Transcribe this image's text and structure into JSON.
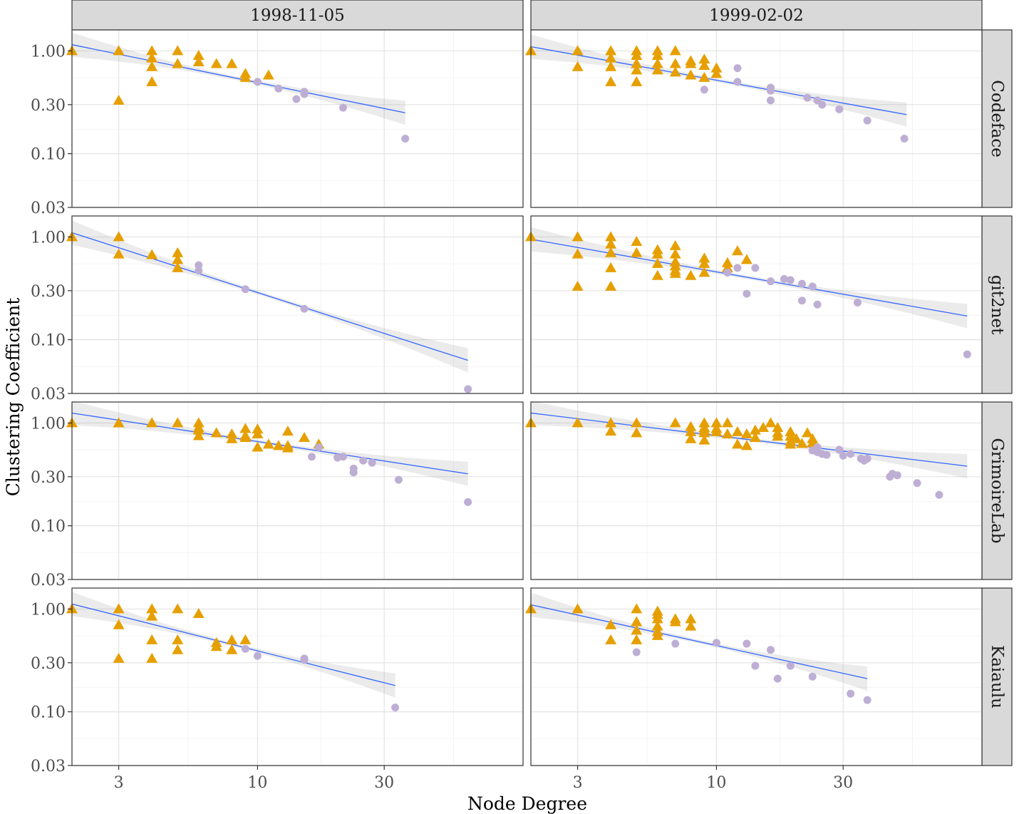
{
  "chart_data": {
    "type": "scatter",
    "xlabel": "Node Degree",
    "ylabel": "Clustering Coefficient",
    "x_scale": "log10",
    "y_scale": "log10",
    "xlim": [
      2.0,
      100
    ],
    "ylim": [
      0.03,
      1.6
    ],
    "x_ticks": [
      3,
      10,
      30
    ],
    "x_tick_labels": [
      "3",
      "10",
      "30"
    ],
    "y_ticks": [
      0.03,
      0.1,
      0.3,
      1.0
    ],
    "y_tick_labels": [
      "0.03",
      "0.10",
      "0.30",
      "1.00"
    ],
    "columns": [
      "1998-11-05",
      "1999-02-02"
    ],
    "rows": [
      "Codeface",
      "git2net",
      "GrimoireLab",
      "Kaiaulu"
    ],
    "marker_groups": [
      {
        "name": "triangle",
        "shape": "triangle",
        "color": "#E69F00"
      },
      {
        "name": "circle",
        "shape": "circle",
        "color": "#BEAED4"
      }
    ],
    "fit_line_color": "#3366FF",
    "panels": [
      {
        "row": "Codeface",
        "col": "1998-11-05",
        "fit": {
          "x0": 2,
          "y0": 1.15,
          "x1": 36,
          "y1": 0.25
        },
        "triangles": [
          [
            2,
            1
          ],
          [
            3,
            1
          ],
          [
            3,
            0.33
          ],
          [
            4,
            1
          ],
          [
            4,
            0.85
          ],
          [
            4,
            0.7
          ],
          [
            4,
            0.5
          ],
          [
            5,
            1
          ],
          [
            5,
            0.75
          ],
          [
            6,
            0.9
          ],
          [
            6,
            0.78
          ],
          [
            7,
            0.75
          ],
          [
            8,
            0.75
          ],
          [
            9,
            0.6
          ],
          [
            9,
            0.55
          ],
          [
            11,
            0.58
          ]
        ],
        "circles": [
          [
            10,
            0.5
          ],
          [
            12,
            0.43
          ],
          [
            14,
            0.34
          ],
          [
            15,
            0.38
          ],
          [
            15,
            0.4
          ],
          [
            21,
            0.28
          ],
          [
            36,
            0.14
          ]
        ]
      },
      {
        "row": "Codeface",
        "col": "1999-02-02",
        "fit": {
          "x0": 2,
          "y0": 1.1,
          "x1": 52,
          "y1": 0.24
        },
        "triangles": [
          [
            2,
            1
          ],
          [
            3,
            1
          ],
          [
            3,
            0.7
          ],
          [
            4,
            1
          ],
          [
            4,
            0.85
          ],
          [
            4,
            0.7
          ],
          [
            4,
            0.5
          ],
          [
            5,
            1
          ],
          [
            5,
            0.9
          ],
          [
            5,
            0.75
          ],
          [
            5,
            0.65
          ],
          [
            5,
            0.5
          ],
          [
            6,
            1
          ],
          [
            6,
            0.9
          ],
          [
            6,
            0.75
          ],
          [
            6,
            0.65
          ],
          [
            7,
            1
          ],
          [
            7,
            0.75
          ],
          [
            7,
            0.62
          ],
          [
            8,
            0.8
          ],
          [
            8,
            0.75
          ],
          [
            8,
            0.58
          ],
          [
            9,
            0.83
          ],
          [
            9,
            0.72
          ],
          [
            9,
            0.55
          ],
          [
            10,
            0.68
          ],
          [
            10,
            0.6
          ]
        ],
        "circles": [
          [
            9,
            0.42
          ],
          [
            12,
            0.68
          ],
          [
            12,
            0.5
          ],
          [
            16,
            0.44
          ],
          [
            16,
            0.41
          ],
          [
            16,
            0.33
          ],
          [
            22,
            0.35
          ],
          [
            24,
            0.33
          ],
          [
            25,
            0.3
          ],
          [
            29,
            0.27
          ],
          [
            37,
            0.21
          ],
          [
            51,
            0.14
          ]
        ]
      },
      {
        "row": "git2net",
        "col": "1998-11-05",
        "fit": {
          "x0": 2,
          "y0": 1.1,
          "x1": 62,
          "y1": 0.063
        },
        "triangles": [
          [
            2,
            1
          ],
          [
            3,
            1
          ],
          [
            3,
            0.68
          ],
          [
            4,
            0.67
          ],
          [
            5,
            0.7
          ],
          [
            5,
            0.6
          ],
          [
            5,
            0.5
          ]
        ],
        "circles": [
          [
            6,
            0.53
          ],
          [
            6,
            0.47
          ],
          [
            9,
            0.31
          ],
          [
            15,
            0.2
          ],
          [
            62,
            0.033
          ]
        ]
      },
      {
        "row": "git2net",
        "col": "1999-02-02",
        "fit": {
          "x0": 2,
          "y0": 0.95,
          "x1": 88,
          "y1": 0.17
        },
        "triangles": [
          [
            2,
            1
          ],
          [
            3,
            1
          ],
          [
            3,
            0.68
          ],
          [
            3,
            0.33
          ],
          [
            4,
            1
          ],
          [
            4,
            0.85
          ],
          [
            4,
            0.7
          ],
          [
            4,
            0.5
          ],
          [
            4,
            0.33
          ],
          [
            5,
            0.9
          ],
          [
            5,
            0.7
          ],
          [
            6,
            0.75
          ],
          [
            6,
            0.68
          ],
          [
            6,
            0.55
          ],
          [
            6,
            0.42
          ],
          [
            7,
            0.82
          ],
          [
            7,
            0.68
          ],
          [
            7,
            0.57
          ],
          [
            7,
            0.52
          ],
          [
            7,
            0.47
          ],
          [
            7,
            0.44
          ],
          [
            8,
            0.42
          ],
          [
            9,
            0.62
          ],
          [
            9,
            0.55
          ],
          [
            9,
            0.45
          ],
          [
            11,
            0.56
          ],
          [
            11,
            0.5
          ],
          [
            12,
            0.73
          ],
          [
            13,
            0.6
          ]
        ],
        "circles": [
          [
            11,
            0.45
          ],
          [
            12,
            0.5
          ],
          [
            13,
            0.28
          ],
          [
            14,
            0.5
          ],
          [
            16,
            0.37
          ],
          [
            18,
            0.39
          ],
          [
            19,
            0.38
          ],
          [
            21,
            0.35
          ],
          [
            21,
            0.24
          ],
          [
            23,
            0.33
          ],
          [
            24,
            0.22
          ],
          [
            34,
            0.23
          ],
          [
            88,
            0.072
          ]
        ]
      },
      {
        "row": "GrimoireLab",
        "col": "1998-11-05",
        "fit": {
          "x0": 2,
          "y0": 1.25,
          "x1": 62,
          "y1": 0.32
        },
        "triangles": [
          [
            2,
            1
          ],
          [
            3,
            1
          ],
          [
            4,
            1
          ],
          [
            5,
            1
          ],
          [
            6,
            1
          ],
          [
            6,
            0.9
          ],
          [
            6,
            0.85
          ],
          [
            6,
            0.75
          ],
          [
            7,
            0.8
          ],
          [
            8,
            0.78
          ],
          [
            8,
            0.7
          ],
          [
            9,
            0.88
          ],
          [
            9,
            0.75
          ],
          [
            9,
            0.72
          ],
          [
            10,
            0.87
          ],
          [
            10,
            0.78
          ],
          [
            10,
            0.58
          ],
          [
            11,
            0.62
          ],
          [
            12,
            0.6
          ],
          [
            13,
            0.83
          ],
          [
            13,
            0.6
          ],
          [
            13,
            0.57
          ],
          [
            15,
            0.72
          ],
          [
            17,
            0.62
          ]
        ],
        "circles": [
          [
            16,
            0.47
          ],
          [
            17,
            0.58
          ],
          [
            20,
            0.46
          ],
          [
            21,
            0.47
          ],
          [
            23,
            0.36
          ],
          [
            23,
            0.33
          ],
          [
            25,
            0.43
          ],
          [
            27,
            0.41
          ],
          [
            34,
            0.28
          ],
          [
            62,
            0.17
          ]
        ]
      },
      {
        "row": "GrimoireLab",
        "col": "1999-02-02",
        "fit": {
          "x0": 2,
          "y0": 1.25,
          "x1": 88,
          "y1": 0.38
        },
        "triangles": [
          [
            2,
            1
          ],
          [
            3,
            1
          ],
          [
            4,
            1
          ],
          [
            4,
            0.83
          ],
          [
            5,
            1
          ],
          [
            5,
            0.8
          ],
          [
            7,
            1
          ],
          [
            8,
            0.92
          ],
          [
            8,
            0.82
          ],
          [
            8,
            0.7
          ],
          [
            9,
            1
          ],
          [
            9,
            0.9
          ],
          [
            9,
            0.85
          ],
          [
            9,
            0.8
          ],
          [
            9,
            0.68
          ],
          [
            10,
            1
          ],
          [
            10,
            0.88
          ],
          [
            10,
            0.82
          ],
          [
            11,
            1
          ],
          [
            11,
            0.78
          ],
          [
            12,
            0.62
          ],
          [
            12,
            0.82
          ],
          [
            13,
            0.78
          ],
          [
            13,
            0.6
          ],
          [
            14,
            0.72
          ],
          [
            14,
            0.85
          ],
          [
            15,
            0.9
          ],
          [
            16,
            1
          ],
          [
            17,
            0.9
          ],
          [
            17,
            0.8
          ],
          [
            17,
            0.74
          ],
          [
            19,
            0.82
          ],
          [
            19,
            0.74
          ],
          [
            19,
            0.66
          ],
          [
            19,
            0.62
          ],
          [
            20,
            0.7
          ],
          [
            21,
            0.63
          ],
          [
            22,
            0.8
          ],
          [
            23,
            0.7
          ],
          [
            23,
            0.64
          ]
        ],
        "circles": [
          [
            23,
            0.54
          ],
          [
            24,
            0.52
          ],
          [
            24,
            0.58
          ],
          [
            25,
            0.5
          ],
          [
            26,
            0.49
          ],
          [
            29,
            0.55
          ],
          [
            30,
            0.48
          ],
          [
            32,
            0.5
          ],
          [
            35,
            0.45
          ],
          [
            36,
            0.43
          ],
          [
            37,
            0.45
          ],
          [
            45,
            0.3
          ],
          [
            46,
            0.32
          ],
          [
            48,
            0.31
          ],
          [
            57,
            0.26
          ],
          [
            69,
            0.2
          ]
        ]
      },
      {
        "row": "Kaiaulu",
        "col": "1998-11-05",
        "fit": {
          "x0": 2,
          "y0": 1.12,
          "x1": 33,
          "y1": 0.18
        },
        "triangles": [
          [
            2,
            1
          ],
          [
            3,
            1
          ],
          [
            3,
            0.7
          ],
          [
            3,
            0.33
          ],
          [
            4,
            1
          ],
          [
            4,
            0.85
          ],
          [
            4,
            0.5
          ],
          [
            4,
            0.33
          ],
          [
            5,
            1
          ],
          [
            5,
            0.5
          ],
          [
            5,
            0.4
          ],
          [
            6,
            0.9
          ],
          [
            7,
            0.47
          ],
          [
            7,
            0.43
          ],
          [
            8,
            0.5
          ],
          [
            8,
            0.4
          ],
          [
            9,
            0.5
          ]
        ],
        "circles": [
          [
            9,
            0.41
          ],
          [
            10,
            0.35
          ],
          [
            15,
            0.33
          ],
          [
            15,
            0.32
          ],
          [
            33,
            0.11
          ]
        ]
      },
      {
        "row": "Kaiaulu",
        "col": "1999-02-02",
        "fit": {
          "x0": 2,
          "y0": 1.1,
          "x1": 37,
          "y1": 0.21
        },
        "triangles": [
          [
            2,
            1
          ],
          [
            3,
            1
          ],
          [
            4,
            0.7
          ],
          [
            4,
            0.5
          ],
          [
            5,
            1
          ],
          [
            5,
            0.75
          ],
          [
            5,
            0.62
          ],
          [
            5,
            0.5
          ],
          [
            6,
            0.95
          ],
          [
            6,
            0.88
          ],
          [
            6,
            0.8
          ],
          [
            6,
            0.68
          ],
          [
            6,
            0.6
          ],
          [
            6,
            0.55
          ],
          [
            7,
            0.8
          ],
          [
            7,
            0.75
          ],
          [
            8,
            0.8
          ],
          [
            8,
            0.68
          ]
        ],
        "circles": [
          [
            5,
            0.38
          ],
          [
            7,
            0.46
          ],
          [
            10,
            0.47
          ],
          [
            13,
            0.46
          ],
          [
            14,
            0.28
          ],
          [
            16,
            0.4
          ],
          [
            17,
            0.21
          ],
          [
            19,
            0.28
          ],
          [
            23,
            0.22
          ],
          [
            32,
            0.15
          ],
          [
            37,
            0.13
          ]
        ]
      }
    ]
  }
}
